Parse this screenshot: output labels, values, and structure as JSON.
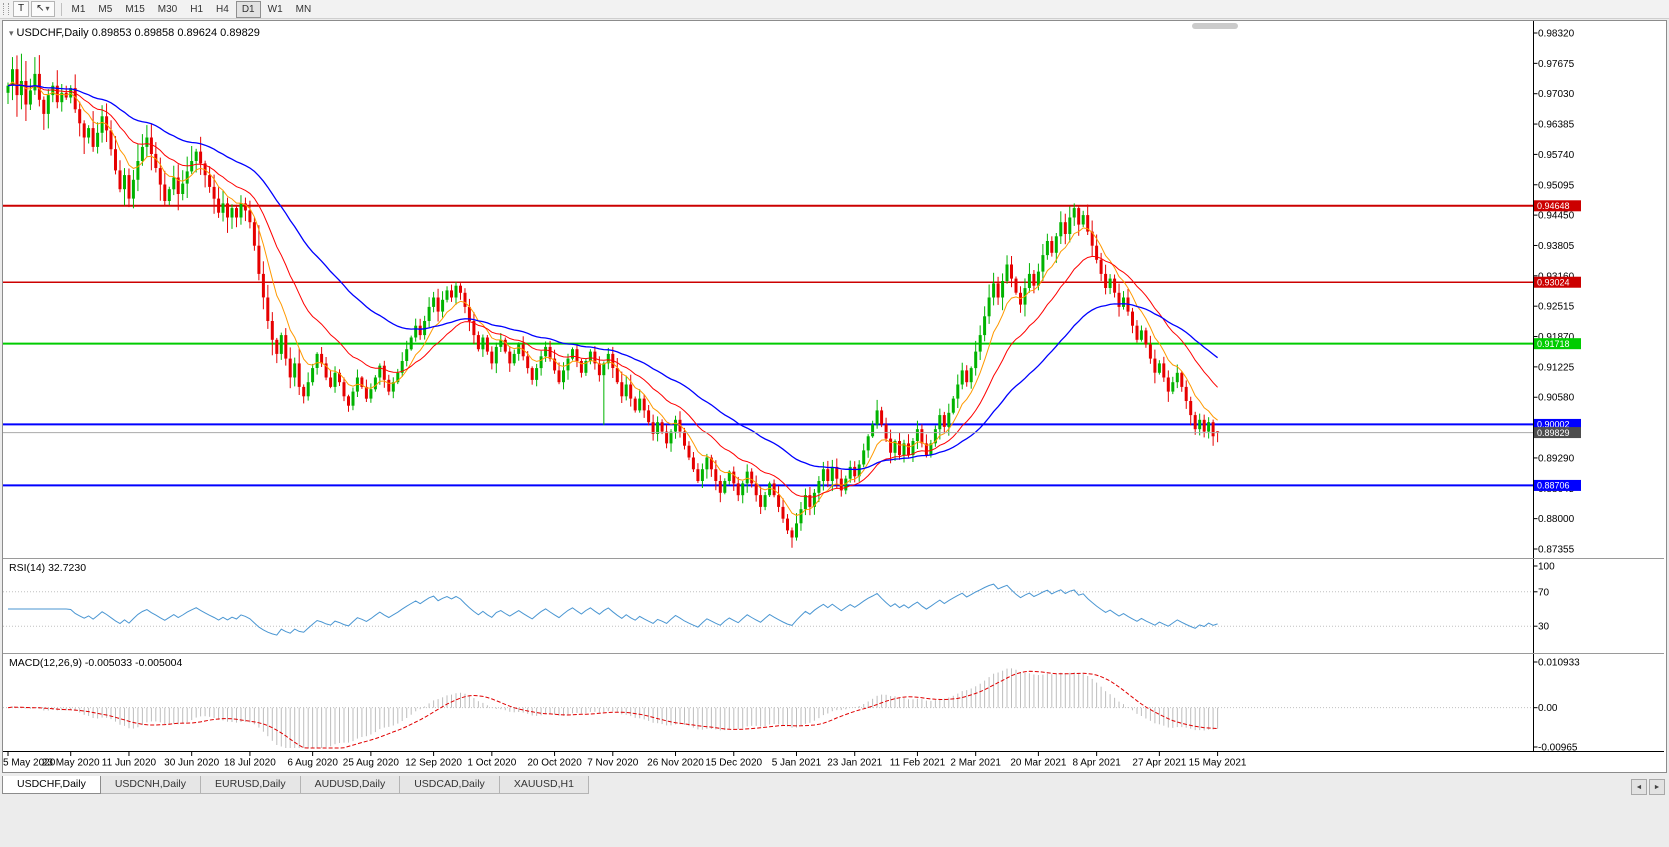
{
  "toolbar": {
    "tools": [
      {
        "id": "templates",
        "label": "T",
        "dropdown": false
      },
      {
        "id": "cursor",
        "label": "↖",
        "dropdown": true
      }
    ],
    "timeframes": [
      {
        "label": "M1"
      },
      {
        "label": "M5"
      },
      {
        "label": "M15"
      },
      {
        "label": "M30"
      },
      {
        "label": "H1"
      },
      {
        "label": "H4"
      },
      {
        "label": "D1",
        "active": true
      },
      {
        "label": "W1"
      },
      {
        "label": "MN"
      }
    ]
  },
  "chart": {
    "collapse_icon": "▾",
    "header": "USDCHF,Daily  0.89853 0.89858 0.89624 0.89829",
    "symbol": "USDCHF",
    "period": "Daily",
    "open": "0.89853",
    "high": "0.89858",
    "low": "0.89624",
    "close": "0.89829"
  },
  "indicators": {
    "rsi": {
      "header": "RSI(14) 32.7230"
    },
    "macd": {
      "header": "MACD(12,26,9) -0.005033 -0.005004"
    }
  },
  "tabs": {
    "items": [
      {
        "label": "USDCHF,Daily",
        "active": true
      },
      {
        "label": "USDCNH,Daily"
      },
      {
        "label": "EURUSD,Daily"
      },
      {
        "label": "AUDUSD,Daily"
      },
      {
        "label": "USDCAD,Daily"
      },
      {
        "label": "XAUUSD,H1"
      }
    ],
    "nav": [
      "◄",
      "►"
    ]
  },
  "chart_data": {
    "type": "candlestick",
    "symbol": "USDCHF",
    "timeframe": "Daily",
    "ylim": [
      0.87355,
      0.9832
    ],
    "price_ticks": [
      "0.98320",
      "0.97675",
      "0.97030",
      "0.96385",
      "0.95740",
      "0.95095",
      "0.94450",
      "0.93805",
      "0.93160",
      "0.92515",
      "0.91870",
      "0.91225",
      "0.90580",
      "0.89935",
      "0.89290",
      "0.88645",
      "0.88000",
      "0.87355"
    ],
    "date_ticks": [
      {
        "i": 0,
        "label": "5 May 2020"
      },
      {
        "i": 14,
        "label": "23 May 2020"
      },
      {
        "i": 27,
        "label": "11 Jun 2020"
      },
      {
        "i": 41,
        "label": "30 Jun 2020"
      },
      {
        "i": 54,
        "label": "18 Jul 2020"
      },
      {
        "i": 68,
        "label": "6 Aug 2020"
      },
      {
        "i": 81,
        "label": "25 Aug 2020"
      },
      {
        "i": 95,
        "label": "12 Sep 2020"
      },
      {
        "i": 108,
        "label": "1 Oct 2020"
      },
      {
        "i": 122,
        "label": "20 Oct 2020"
      },
      {
        "i": 135,
        "label": "7 Nov 2020"
      },
      {
        "i": 149,
        "label": "26 Nov 2020"
      },
      {
        "i": 162,
        "label": "15 Dec 2020"
      },
      {
        "i": 176,
        "label": "5 Jan 2021"
      },
      {
        "i": 189,
        "label": "23 Jan 2021"
      },
      {
        "i": 203,
        "label": "11 Feb 2021"
      },
      {
        "i": 216,
        "label": "2 Mar 2021"
      },
      {
        "i": 230,
        "label": "20 Mar 2021"
      },
      {
        "i": 243,
        "label": "8 Apr 2021"
      },
      {
        "i": 257,
        "label": "27 Apr 2021"
      },
      {
        "i": 270,
        "label": "15 May 2021"
      }
    ],
    "closes": [
      0.972,
      0.9755,
      0.97,
      0.973,
      0.968,
      0.971,
      0.9745,
      0.969,
      0.966,
      0.97,
      0.972,
      0.9685,
      0.9705,
      0.9695,
      0.9715,
      0.967,
      0.964,
      0.961,
      0.963,
      0.959,
      0.962,
      0.9655,
      0.9625,
      0.9585,
      0.954,
      0.95,
      0.953,
      0.948,
      0.952,
      0.956,
      0.959,
      0.961,
      0.9575,
      0.9545,
      0.951,
      0.9475,
      0.95,
      0.9525,
      0.949,
      0.9512,
      0.9538,
      0.956,
      0.958,
      0.9555,
      0.953,
      0.9505,
      0.948,
      0.945,
      0.947,
      0.944,
      0.946,
      0.944,
      0.947,
      0.9455,
      0.943,
      0.938,
      0.932,
      0.927,
      0.922,
      0.918,
      0.915,
      0.919,
      0.914,
      0.91,
      0.913,
      0.908,
      0.906,
      0.909,
      0.912,
      0.915,
      0.913,
      0.91,
      0.908,
      0.911,
      0.909,
      0.906,
      0.904,
      0.907,
      0.91,
      0.908,
      0.9055,
      0.9075,
      0.91,
      0.9125,
      0.9095,
      0.907,
      0.909,
      0.911,
      0.9135,
      0.916,
      0.9185,
      0.921,
      0.919,
      0.922,
      0.925,
      0.927,
      0.924,
      0.9265,
      0.9285,
      0.927,
      0.9295,
      0.928,
      0.925,
      0.922,
      0.919,
      0.916,
      0.9185,
      0.9155,
      0.913,
      0.9165,
      0.918,
      0.9155,
      0.913,
      0.915,
      0.917,
      0.9145,
      0.912,
      0.9095,
      0.912,
      0.9145,
      0.9165,
      0.914,
      0.9115,
      0.909,
      0.9115,
      0.914,
      0.916,
      0.9135,
      0.911,
      0.9135,
      0.9155,
      0.913,
      0.9105,
      0.913,
      0.915,
      0.912,
      0.909,
      0.906,
      0.9085,
      0.9055,
      0.903,
      0.9055,
      0.903,
      0.9005,
      0.898,
      0.9005,
      0.8985,
      0.896,
      0.8985,
      0.901,
      0.8985,
      0.8955,
      0.893,
      0.8905,
      0.888,
      0.8905,
      0.893,
      0.8905,
      0.888,
      0.8855,
      0.888,
      0.89,
      0.8875,
      0.885,
      0.8875,
      0.89,
      0.8875,
      0.885,
      0.8825,
      0.885,
      0.8875,
      0.885,
      0.8825,
      0.88,
      0.8775,
      0.876,
      0.879,
      0.882,
      0.885,
      0.8825,
      0.8855,
      0.888,
      0.8905,
      0.888,
      0.891,
      0.8885,
      0.886,
      0.8885,
      0.891,
      0.889,
      0.8915,
      0.8945,
      0.8975,
      0.9,
      0.903,
      0.9,
      0.897,
      0.894,
      0.8965,
      0.8935,
      0.896,
      0.8935,
      0.8965,
      0.899,
      0.896,
      0.8935,
      0.896,
      0.899,
      0.902,
      0.8995,
      0.9025,
      0.9055,
      0.9085,
      0.9115,
      0.909,
      0.912,
      0.9155,
      0.919,
      0.923,
      0.927,
      0.93,
      0.927,
      0.9305,
      0.934,
      0.931,
      0.928,
      0.9255,
      0.929,
      0.932,
      0.9295,
      0.9325,
      0.936,
      0.939,
      0.9365,
      0.94,
      0.943,
      0.9405,
      0.944,
      0.946,
      0.9425,
      0.9445,
      0.941,
      0.938,
      0.935,
      0.932,
      0.929,
      0.931,
      0.928,
      0.925,
      0.927,
      0.924,
      0.921,
      0.918,
      0.92,
      0.917,
      0.914,
      0.911,
      0.913,
      0.91,
      0.907,
      0.909,
      0.911,
      0.908,
      0.905,
      0.902,
      0.899,
      0.901,
      0.8985,
      0.9005,
      0.8975,
      0.89829
    ],
    "overrides": {
      "3": {
        "high": 0.9788
      },
      "27": {
        "low": 0.9462
      },
      "35": {
        "low": 0.9465
      },
      "100": {
        "high": 0.9303
      },
      "133": {
        "low": 0.8999
      },
      "175": {
        "low": 0.8738
      },
      "238": {
        "high": 0.947
      },
      "270": {
        "open": 0.89853,
        "high": 0.89858,
        "low": 0.89624,
        "close": 0.89829
      }
    },
    "hlines": [
      {
        "price": 0.94648,
        "label": "0.94648",
        "color": "#cc0000",
        "width": 2
      },
      {
        "price": 0.93024,
        "label": "0.93024",
        "color": "#cc0000",
        "width": 1.5
      },
      {
        "price": 0.91718,
        "label": "0.91718",
        "color": "#00cc00",
        "width": 2
      },
      {
        "price": 0.90002,
        "label": "0.90002",
        "color": "#0000ff",
        "width": 2
      },
      {
        "price": 0.88706,
        "label": "0.88706",
        "color": "#0000ff",
        "width": 2
      }
    ],
    "bid": {
      "price": 0.89829,
      "label": "0.89829",
      "line_color": "#aaaaaa",
      "label_bg": "#4d4d4d"
    },
    "moving_averages": [
      {
        "period": 8,
        "color": "#ff9900",
        "width": 1
      },
      {
        "period": 20,
        "color": "#ff0000",
        "width": 1
      },
      {
        "period": 45,
        "color": "#0000ff",
        "width": 1.3
      }
    ],
    "rsi": {
      "period": 14,
      "value": 32.723,
      "levels": [
        100,
        70,
        30
      ],
      "color": "#4a96d2"
    },
    "macd": {
      "fast": 12,
      "slow": 26,
      "signal": 9,
      "value": -0.005033,
      "signal_value": -0.005004,
      "scale_max": 0.010933,
      "scale_min": -0.00965,
      "ticks": [
        {
          "label": "0.010933",
          "v": 0.010933
        },
        {
          "label": "0.00",
          "v": 0
        },
        {
          "label": "-0.00965",
          "v": -0.00965
        }
      ],
      "hist_color": "#bdbdbd",
      "signal_color": "#e00000"
    },
    "colors": {
      "up": "#00b300",
      "down": "#e60000",
      "background": "#ffffff",
      "axis_text": "#000000"
    }
  }
}
